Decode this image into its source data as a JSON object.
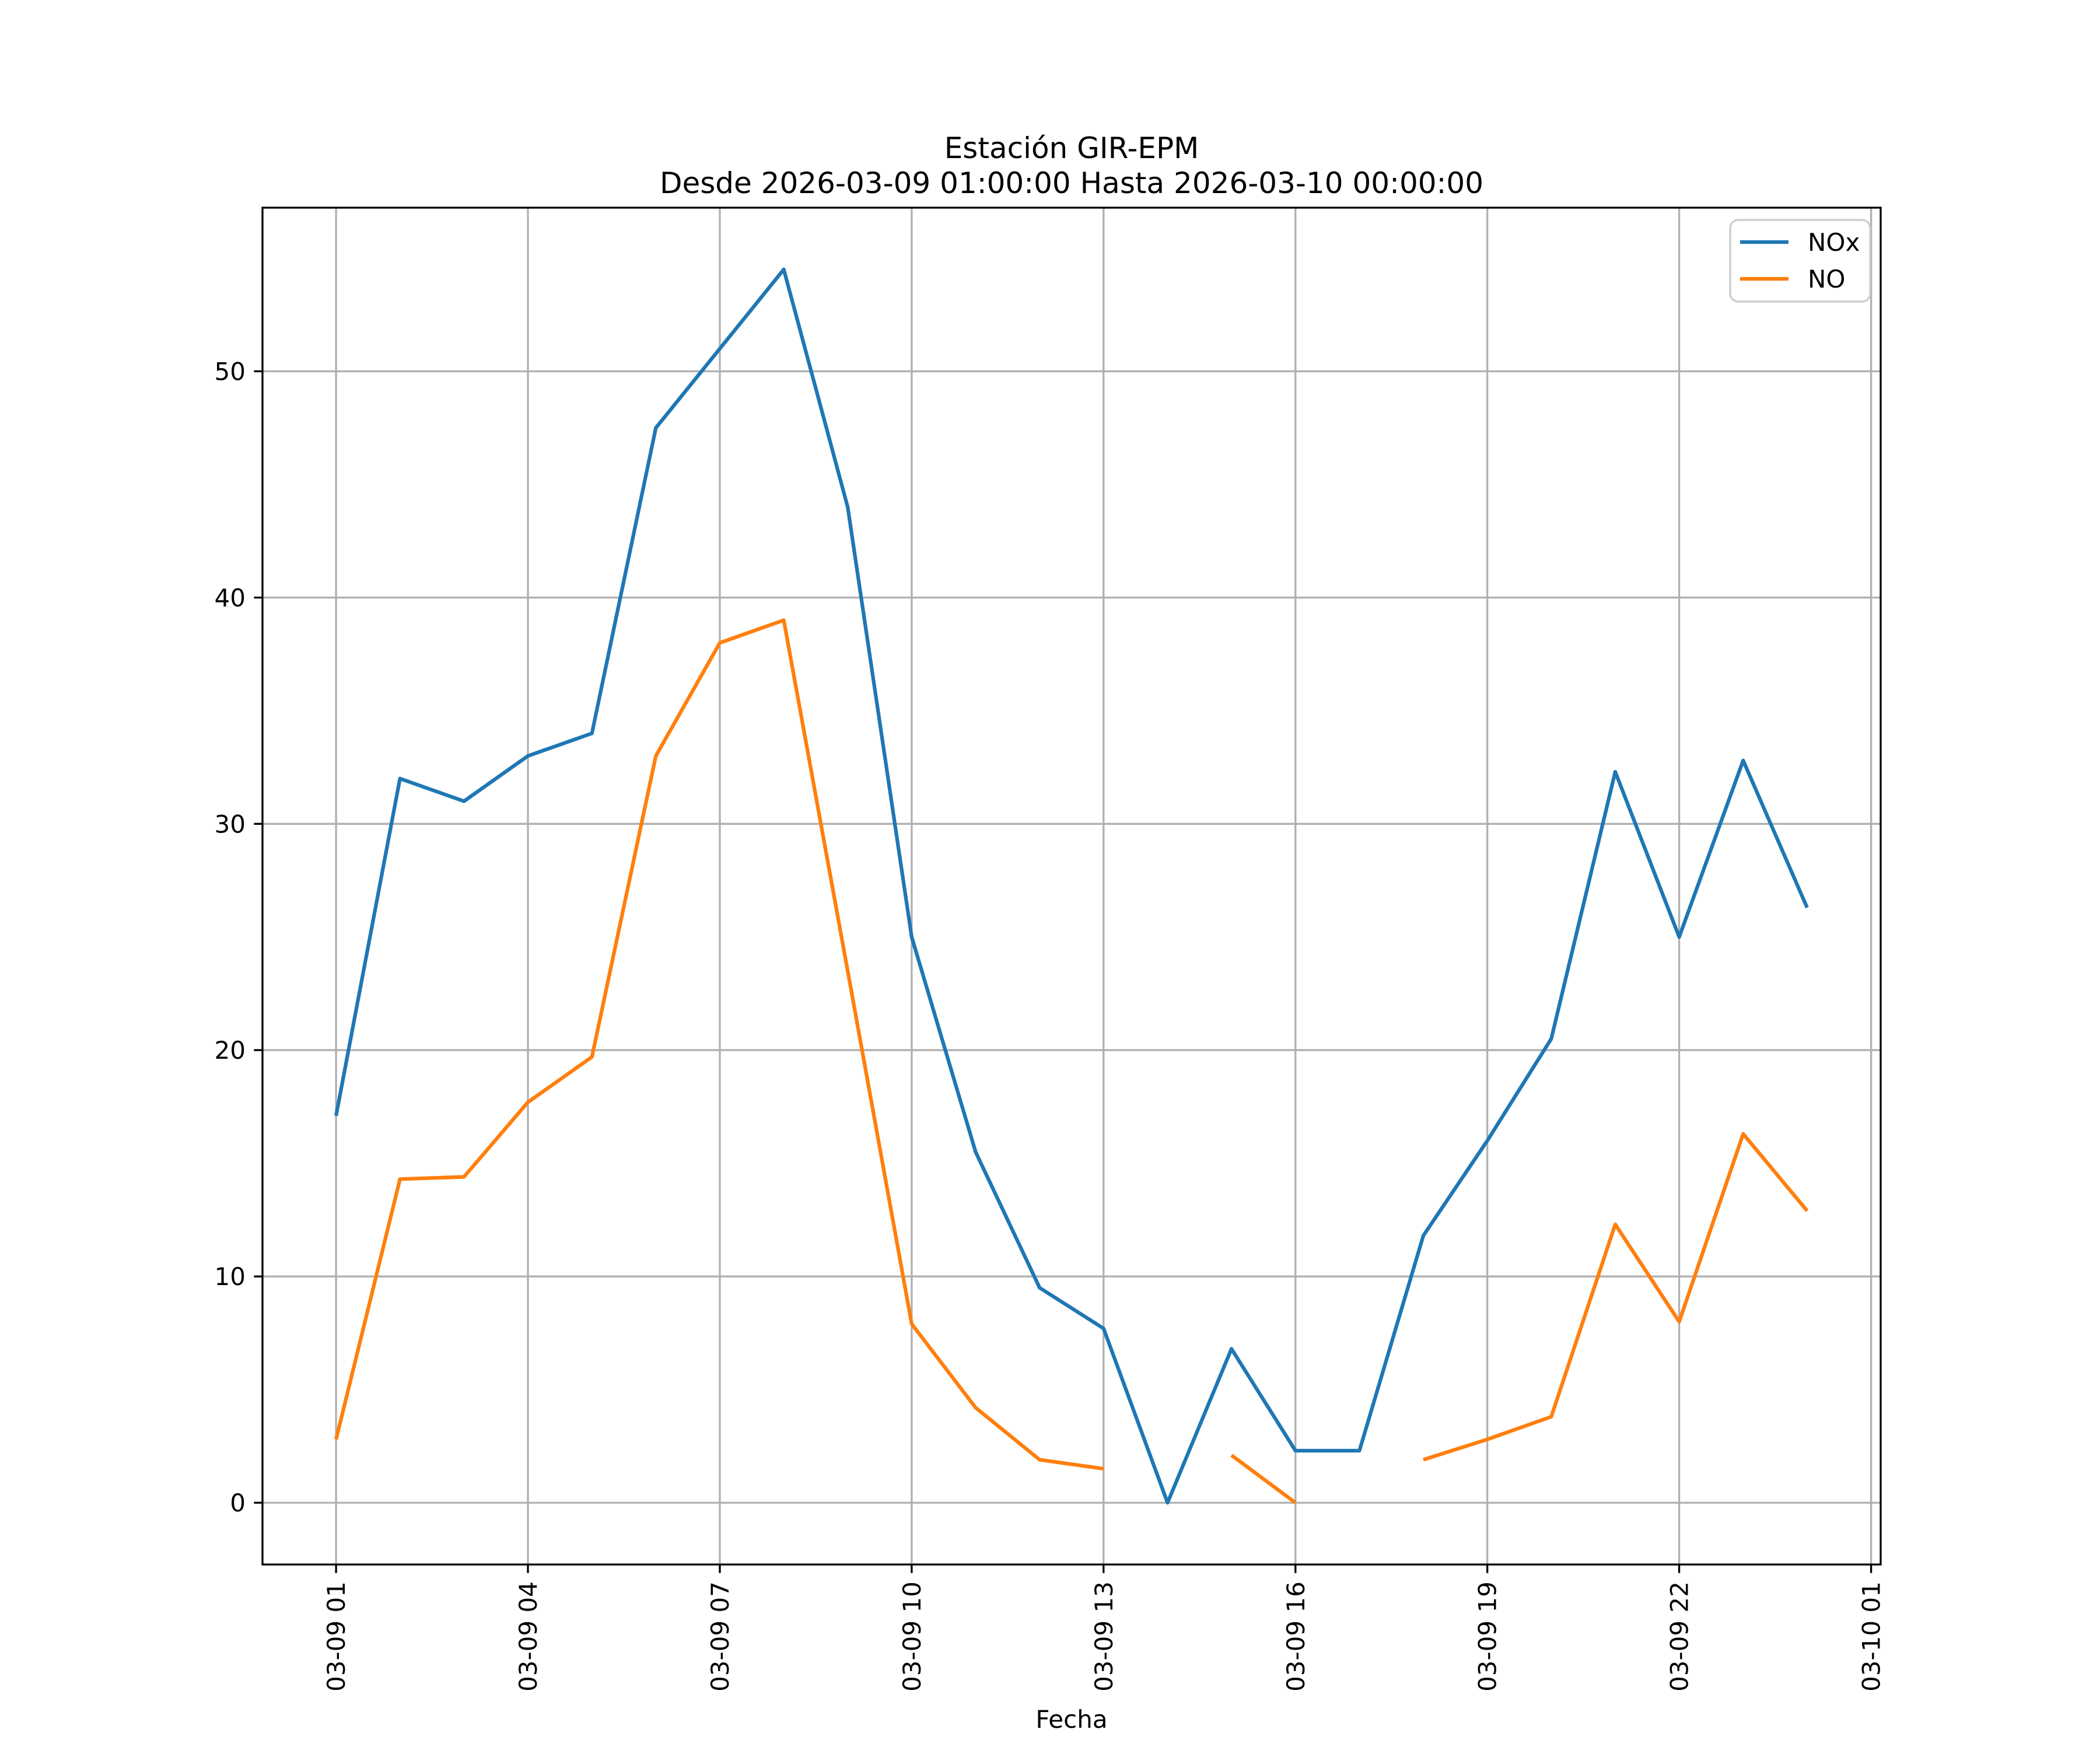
{
  "chart_data": {
    "type": "line",
    "title": "Estación GIR-EPM",
    "subtitle": "Desde 2026-03-09 01:00:00 Hasta 2026-03-10 00:00:00",
    "xlabel": "Fecha",
    "ylabel": "",
    "grid": true,
    "x_hours": [
      1,
      2,
      3,
      4,
      5,
      6,
      7,
      8,
      9,
      10,
      11,
      12,
      13,
      14,
      15,
      16,
      17,
      18,
      19,
      20,
      21,
      22,
      23,
      24
    ],
    "series": [
      {
        "name": "NOx",
        "color": "#1f77b4",
        "values": [
          17.1,
          32.0,
          31.0,
          33.0,
          34.0,
          47.5,
          51.0,
          54.5,
          44.0,
          25.0,
          15.5,
          9.5,
          7.7,
          0.0,
          6.8,
          2.3,
          2.3,
          11.8,
          16.0,
          20.5,
          32.3,
          25.0,
          32.8,
          26.3
        ]
      },
      {
        "name": "NO",
        "color": "#ff7f0e",
        "values": [
          2.8,
          14.3,
          14.4,
          17.7,
          19.7,
          33.0,
          38.0,
          39.0,
          23.5,
          7.9,
          4.2,
          1.9,
          1.5,
          null,
          2.1,
          0.0,
          null,
          1.9,
          2.8,
          3.8,
          12.3,
          8.0,
          16.3,
          12.9
        ]
      }
    ],
    "xticks": {
      "hours": [
        1,
        4,
        7,
        10,
        13,
        16,
        19,
        22,
        25
      ],
      "labels": [
        "03-09 01",
        "03-09 04",
        "03-09 07",
        "03-09 10",
        "03-09 13",
        "03-09 16",
        "03-09 19",
        "03-09 22",
        "03-10 01"
      ]
    },
    "yticks": [
      0,
      10,
      20,
      30,
      40,
      50
    ],
    "xlim": [
      -0.15,
      25.15
    ],
    "ylim": [
      -2.73,
      57.23
    ],
    "legend": {
      "position": "upper-right",
      "entries": [
        "NOx",
        "NO"
      ]
    }
  }
}
